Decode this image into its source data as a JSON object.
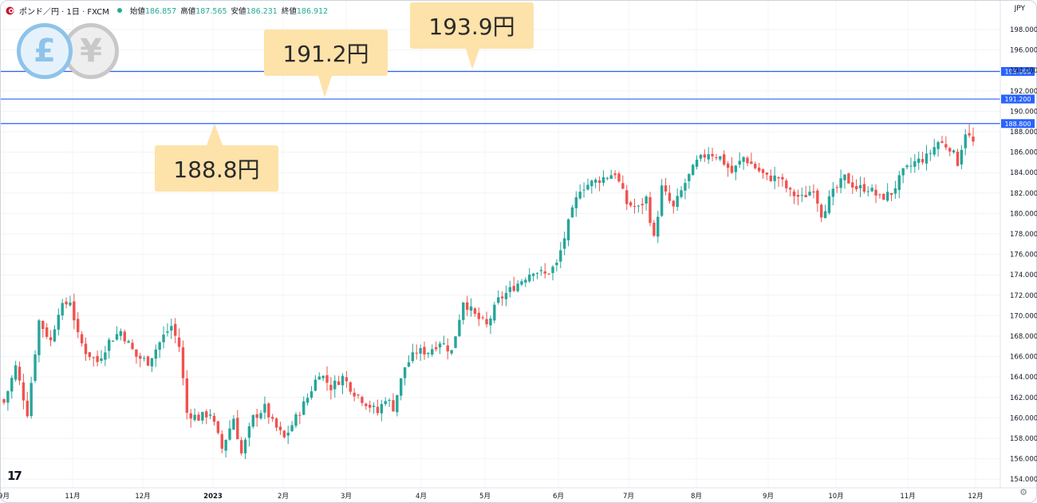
{
  "header": {
    "symbol": "ポンド／円 · 1日 · FXCM",
    "ohlc": [
      {
        "label": "始値",
        "value": "186.857"
      },
      {
        "label": "高値",
        "value": "187.565"
      },
      {
        "label": "安値",
        "value": "186.231"
      },
      {
        "label": "終値",
        "value": "186.912"
      }
    ],
    "currency": "JPY",
    "status_color": "#22ab94"
  },
  "coins": {
    "pound": "£",
    "yen": "¥"
  },
  "callouts": [
    "193.9円",
    "191.2円",
    "188.8円"
  ],
  "chart_data": {
    "type": "candlestick",
    "ylim": [
      153.5,
      199.5
    ],
    "y_ticks": [
      "198.000",
      "196.000",
      "194.000",
      "192.000",
      "190.000",
      "188.000",
      "186.000",
      "184.000",
      "182.000",
      "180.000",
      "178.000",
      "176.000",
      "174.000",
      "172.000",
      "170.000",
      "168.000",
      "166.000",
      "164.000",
      "162.000",
      "160.000",
      "158.000",
      "156.000",
      "154.000"
    ],
    "x_labels": [
      "9月",
      "11月",
      "12月",
      "2023",
      "2月",
      "3月",
      "4月",
      "5月",
      "6月",
      "7月",
      "8月",
      "9月",
      "10月",
      "11月",
      "12月"
    ],
    "horizontal_lines": [
      {
        "value": 193.9,
        "label": "193.900"
      },
      {
        "value": 191.2,
        "label": "191.200"
      },
      {
        "value": 188.8,
        "label": "188.800"
      }
    ],
    "up_color": "#26a69a",
    "down_color": "#ef5350",
    "line_color": "#2962ff",
    "anchors": [
      [
        0,
        161.5
      ],
      [
        3,
        165.0
      ],
      [
        6,
        160.5
      ],
      [
        9,
        169.5
      ],
      [
        12,
        167.5
      ],
      [
        14,
        170.5
      ],
      [
        17,
        171.5
      ],
      [
        19,
        168.0
      ],
      [
        21,
        166.5
      ],
      [
        24,
        165.5
      ],
      [
        27,
        167.5
      ],
      [
        30,
        168.5
      ],
      [
        34,
        166.0
      ],
      [
        37,
        165.5
      ],
      [
        41,
        168.0
      ],
      [
        43,
        169.0
      ],
      [
        45,
        167.0
      ],
      [
        47,
        160.5
      ],
      [
        50,
        160.0
      ],
      [
        53,
        160.5
      ],
      [
        56,
        157.0
      ],
      [
        59,
        160.0
      ],
      [
        61,
        156.5
      ],
      [
        64,
        160.0
      ],
      [
        67,
        161.0
      ],
      [
        69,
        159.5
      ],
      [
        72,
        158.0
      ],
      [
        75,
        160.0
      ],
      [
        78,
        162.0
      ],
      [
        81,
        164.5
      ],
      [
        84,
        163.0
      ],
      [
        87,
        164.0
      ],
      [
        90,
        162.5
      ],
      [
        93,
        161.5
      ],
      [
        96,
        160.5
      ],
      [
        98,
        162.0
      ],
      [
        100,
        161.0
      ],
      [
        103,
        165.0
      ],
      [
        106,
        166.5
      ],
      [
        109,
        166.5
      ],
      [
        112,
        167.5
      ],
      [
        115,
        166.5
      ],
      [
        118,
        171.5
      ],
      [
        121,
        170.0
      ],
      [
        124,
        169.0
      ],
      [
        127,
        171.5
      ],
      [
        130,
        172.5
      ],
      [
        133,
        173.5
      ],
      [
        136,
        174.5
      ],
      [
        139,
        174.0
      ],
      [
        142,
        175.0
      ],
      [
        145,
        179.0
      ],
      [
        148,
        182.5
      ],
      [
        151,
        183.0
      ],
      [
        154,
        183.5
      ],
      [
        157,
        184.0
      ],
      [
        160,
        181.0
      ],
      [
        163,
        180.5
      ],
      [
        165,
        181.5
      ],
      [
        167,
        177.5
      ],
      [
        169,
        182.5
      ],
      [
        172,
        180.5
      ],
      [
        175,
        183.0
      ],
      [
        178,
        185.0
      ],
      [
        181,
        186.0
      ],
      [
        184,
        185.5
      ],
      [
        187,
        184.0
      ],
      [
        190,
        185.5
      ],
      [
        193,
        184.5
      ],
      [
        196,
        183.5
      ],
      [
        199,
        183.5
      ],
      [
        202,
        182.0
      ],
      [
        205,
        181.5
      ],
      [
        208,
        182.5
      ],
      [
        210,
        180.0
      ],
      [
        213,
        182.0
      ],
      [
        216,
        183.5
      ],
      [
        219,
        182.5
      ],
      [
        222,
        182.5
      ],
      [
        225,
        181.5
      ],
      [
        228,
        182.0
      ],
      [
        231,
        184.0
      ],
      [
        234,
        185.0
      ],
      [
        237,
        185.5
      ],
      [
        240,
        187.0
      ],
      [
        243,
        186.5
      ],
      [
        245,
        185.0
      ],
      [
        247,
        188.0
      ],
      [
        249,
        186.9
      ]
    ]
  }
}
